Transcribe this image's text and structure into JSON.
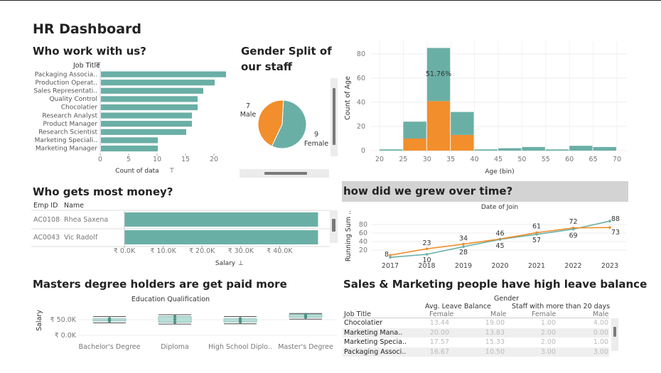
{
  "dashboard": {
    "title": "HR Dashboard"
  },
  "colors": {
    "teal": "#6aafa6",
    "orange": "#f28e2b",
    "grid": "#eeeeee"
  },
  "job_title_chart": {
    "title": "Who work with us?",
    "header": "Job Title",
    "xlabel": "Count of data",
    "ticks": [
      "0",
      "5",
      "10",
      "15",
      "20"
    ]
  },
  "gender_chart": {
    "title_line1": "Gender Split of",
    "title_line2": "our staff",
    "male_count": "7",
    "male_label": "Male",
    "female_count": "9",
    "female_label": "Female"
  },
  "age_chart": {
    "ylabel": "Count of Age",
    "xlabel": "Age (bin)",
    "annotation": "51.76%",
    "yticks": [
      "0",
      "20",
      "40",
      "60",
      "80"
    ],
    "xticks": [
      "20",
      "25",
      "30",
      "35",
      "40",
      "45",
      "50",
      "55",
      "60",
      "65",
      "70"
    ]
  },
  "salary_chart": {
    "title": "Who gets most money?",
    "col_emp": "Emp ID",
    "col_name": "Name",
    "xlabel": "Salary",
    "ticks": [
      "₹ 0.0K",
      "₹ 10.0K",
      "₹ 20.0K",
      "₹ 30.0K",
      "₹ 40.0K"
    ],
    "rows": [
      {
        "id": "AC0108",
        "name": "Rhea Saxena"
      },
      {
        "id": "AC0043",
        "name": "Vic Radolf"
      }
    ]
  },
  "growth_chart": {
    "title": "how did we grew over time?",
    "subtitle": "Date of Join",
    "ylabel": "Running Sum ..",
    "yticks": [
      "20",
      "40",
      "60",
      "80"
    ],
    "xticks": [
      "2017",
      "2018",
      "2019",
      "2020",
      "2021",
      "2022",
      "2023"
    ],
    "orange_labels": [
      "8",
      "23",
      "34",
      "46",
      "61",
      "72",
      "73"
    ],
    "teal_labels": [
      "10",
      "28",
      "45",
      "57",
      "69",
      "88"
    ]
  },
  "masters_chart": {
    "title": "Masters degree holders are get paid more",
    "subtitle": "Education Qualification",
    "ylabel": "Salary",
    "yticks": [
      "₹ 50.0K",
      "₹ 0.0K"
    ],
    "categories": [
      "Bachelor's Degree",
      "Diploma",
      "High School Diplo..",
      "Master's Degree"
    ]
  },
  "leave_table": {
    "title": "Sales & Marketing people have high leave balance",
    "gender_header": "Gender",
    "group1": "Avg. Leave Balance",
    "group2": "Staff with more than 20 days",
    "row_header": "Job Title",
    "sub_female": "Female",
    "sub_male": "Male",
    "rows": [
      {
        "title": "Chocolatier",
        "v": [
          "13.44",
          "19.00",
          "1.00",
          "4.00"
        ]
      },
      {
        "title": "Marketing Mana..",
        "v": [
          "20.00",
          "13.83",
          "2.00",
          "0.00"
        ]
      },
      {
        "title": "Marketing Specia..",
        "v": [
          "17.57",
          "15.33",
          "2.00",
          "1.00"
        ]
      },
      {
        "title": "Packaging Associ..",
        "v": [
          "16.67",
          "10.50",
          "3.00",
          "3.00"
        ]
      }
    ]
  },
  "chart_data": [
    {
      "type": "bar",
      "title": "Who work with us?",
      "xlabel": "Count of data",
      "ylabel": "Job Title",
      "categories": [
        "Packaging Associa..",
        "Production Operat..",
        "Sales Representati..",
        "Quality Control",
        "Chocolatier",
        "Research Analyst",
        "Product Manager",
        "Research Scientist",
        "Marketing Speciali..",
        "Marketing Manager"
      ],
      "values": [
        22,
        20,
        18,
        17,
        17,
        16,
        16,
        15,
        10,
        10
      ],
      "xlim": [
        0,
        22
      ]
    },
    {
      "type": "pie",
      "title": "Gender Split of our staff",
      "categories": [
        "Male",
        "Female"
      ],
      "values": [
        7,
        9
      ]
    },
    {
      "type": "bar",
      "stacked": true,
      "xlabel": "Age (bin)",
      "ylabel": "Count of Age",
      "bin_starts": [
        20,
        25,
        30,
        35,
        40,
        45,
        50,
        55,
        60,
        65
      ],
      "series": [
        {
          "name": "orange",
          "values": [
            0,
            10,
            41,
            13,
            0,
            0,
            0,
            0,
            0,
            0
          ]
        },
        {
          "name": "teal",
          "values": [
            1,
            14,
            44,
            19,
            1,
            2,
            3,
            1,
            4,
            3
          ]
        }
      ],
      "ylim": [
        0,
        85
      ]
    },
    {
      "type": "bar",
      "title": "Who gets most money?",
      "xlabel": "Salary",
      "categories": [
        "AC0108 Rhea Saxena",
        "AC0043 Vic Radolf"
      ],
      "values": [
        49900,
        49900
      ],
      "xlim": [
        0,
        50000
      ]
    },
    {
      "type": "line",
      "title": "how did we grew over time?",
      "xlabel": "Date of Join",
      "ylabel": "Running Sum ..",
      "x": [
        2017,
        2018,
        2019,
        2020,
        2021,
        2022,
        2023
      ],
      "series": [
        {
          "name": "orange",
          "values": [
            8,
            23,
            34,
            46,
            61,
            72,
            73
          ]
        },
        {
          "name": "teal",
          "values": [
            3,
            10,
            28,
            45,
            57,
            69,
            88
          ]
        }
      ],
      "ylim": [
        0,
        95
      ]
    },
    {
      "type": "boxplot",
      "title": "Masters degree holders are get paid more",
      "xlabel": "Education Qualification",
      "ylabel": "Salary",
      "categories": [
        "Bachelor's Degree",
        "Diploma",
        "High School Diplo..",
        "Master's Degree"
      ],
      "boxes": [
        {
          "whisker_low": 40000,
          "q1": 46000,
          "q3": 53000,
          "whisker_high": 60000
        },
        {
          "whisker_low": 36000,
          "q1": 42000,
          "q3": 60000,
          "whisker_high": 66000
        },
        {
          "whisker_low": 37000,
          "q1": 43000,
          "q3": 53000,
          "whisker_high": 60000
        },
        {
          "whisker_low": 52000,
          "q1": 58000,
          "q3": 67000,
          "whisker_high": 70000
        }
      ],
      "ylim": [
        -5000,
        80000
      ]
    }
  ]
}
